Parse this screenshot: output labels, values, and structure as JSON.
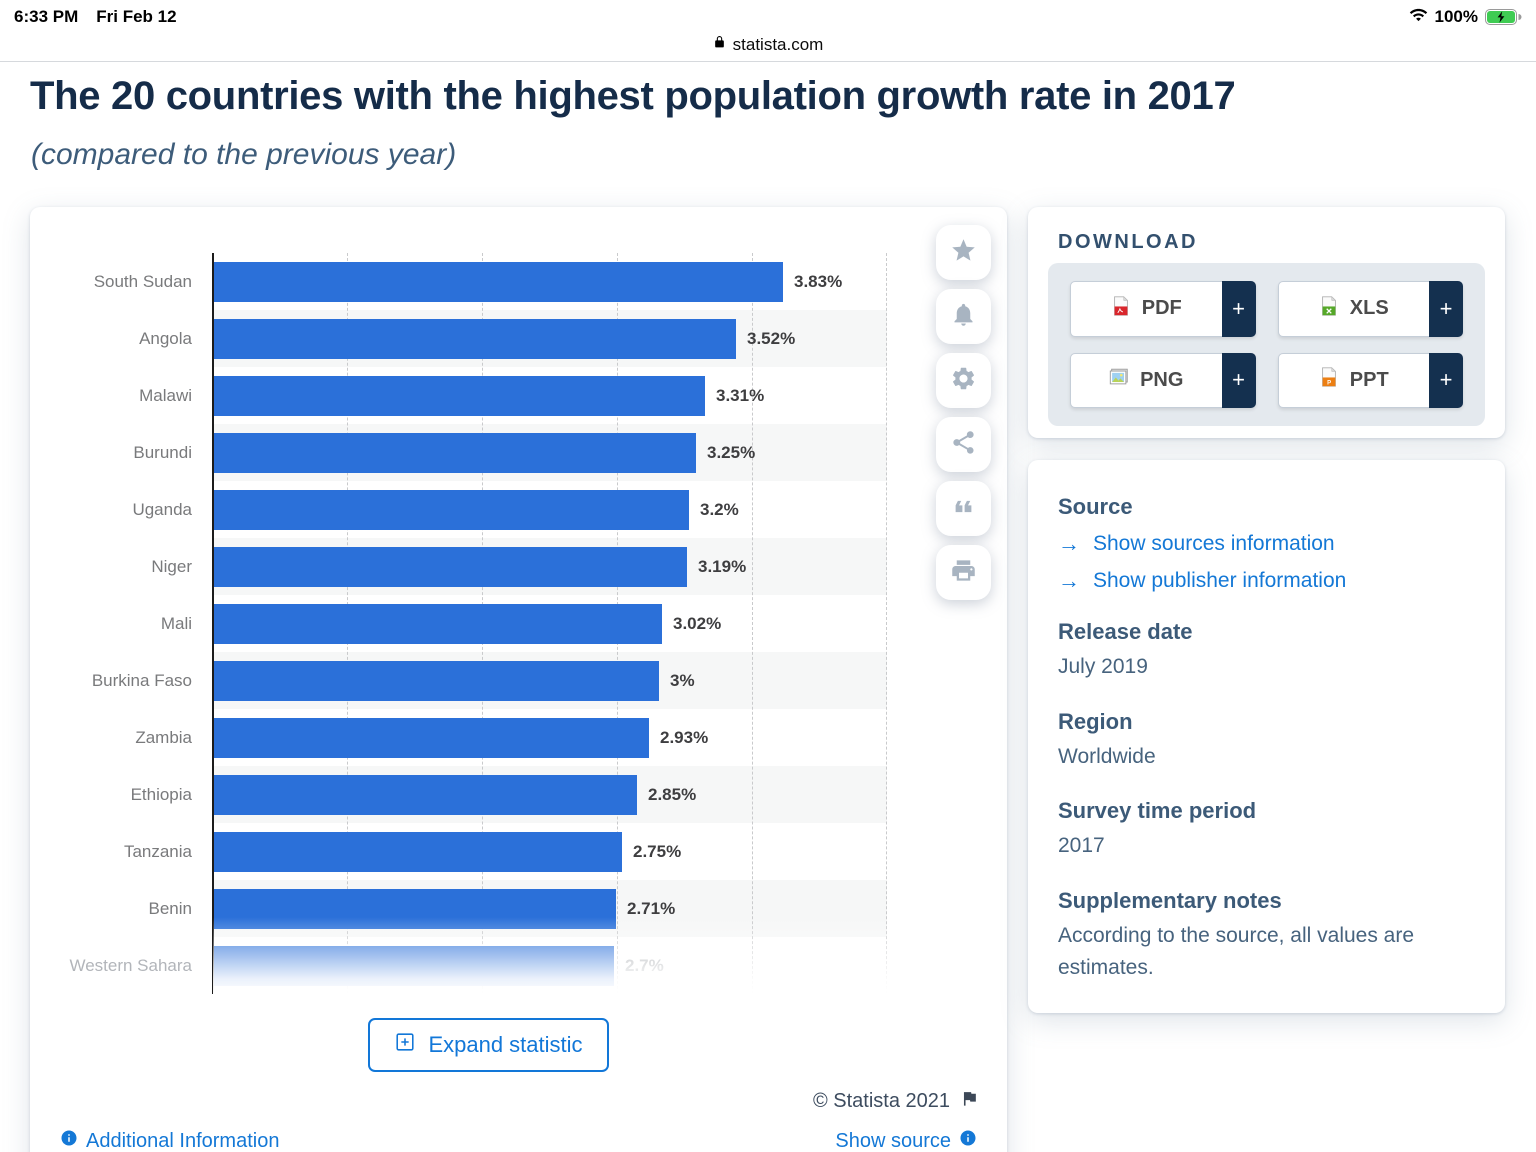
{
  "status_bar": {
    "time": "6:33 PM",
    "date": "Fri Feb 12",
    "battery_pct": "100%"
  },
  "browser": {
    "url": "statista.com"
  },
  "page": {
    "title": "The 20 countries with the highest population growth rate in 2017",
    "subtitle": "(compared to the previous year)"
  },
  "chart_data": {
    "type": "bar",
    "orientation": "horizontal",
    "title": "The 20 countries with the highest population growth rate in 2017",
    "unit": "%",
    "categories": [
      "South Sudan",
      "Angola",
      "Malawi",
      "Burundi",
      "Uganda",
      "Niger",
      "Mali",
      "Burkina Faso",
      "Zambia",
      "Ethiopia",
      "Tanzania",
      "Benin",
      "Western Sahara"
    ],
    "values": [
      3.83,
      3.52,
      3.31,
      3.25,
      3.2,
      3.19,
      3.02,
      3.0,
      2.93,
      2.85,
      2.75,
      2.71,
      2.7
    ],
    "value_labels": [
      "3.83%",
      "3.52%",
      "3.31%",
      "3.25%",
      "3.2%",
      "3.19%",
      "3.02%",
      "3%",
      "2.93%",
      "2.85%",
      "2.75%",
      "2.71%",
      "2.7%"
    ],
    "xlim": [
      0,
      4.5
    ],
    "grid": "dashed-vertical",
    "bar_color": "#2b70d9",
    "last_row_faded": true,
    "note": "list truncated; expands to 20 countries"
  },
  "chart_actions": {
    "icons": [
      "star-icon",
      "bell-icon",
      "gear-icon",
      "share-icon",
      "quote-icon",
      "print-icon"
    ]
  },
  "expand_button": {
    "label": "Expand statistic"
  },
  "copyright": "© Statista 2021",
  "footer": {
    "additional_info": "Additional Information",
    "show_source": "Show source"
  },
  "download": {
    "heading": "DOWNLOAD",
    "plus": "+",
    "buttons": [
      {
        "label": "PDF"
      },
      {
        "label": "XLS"
      },
      {
        "label": "PNG"
      },
      {
        "label": "PPT"
      }
    ]
  },
  "source_panel": {
    "link_arrow": "→",
    "source_heading": "Source",
    "links": [
      "Show sources information",
      "Show publisher information"
    ],
    "release_date_heading": "Release date",
    "release_date": "July 2019",
    "region_heading": "Region",
    "region": "Worldwide",
    "survey_heading": "Survey time period",
    "survey": "2017",
    "notes_heading": "Supplementary notes",
    "notes": "According to the source, all values are estimates."
  },
  "colors": {
    "bar": "#2b70d9",
    "link_blue": "#1478d6",
    "title_navy": "#152c49",
    "plus_strip_navy": "#14304f",
    "battery_green": "#3fcc53"
  }
}
